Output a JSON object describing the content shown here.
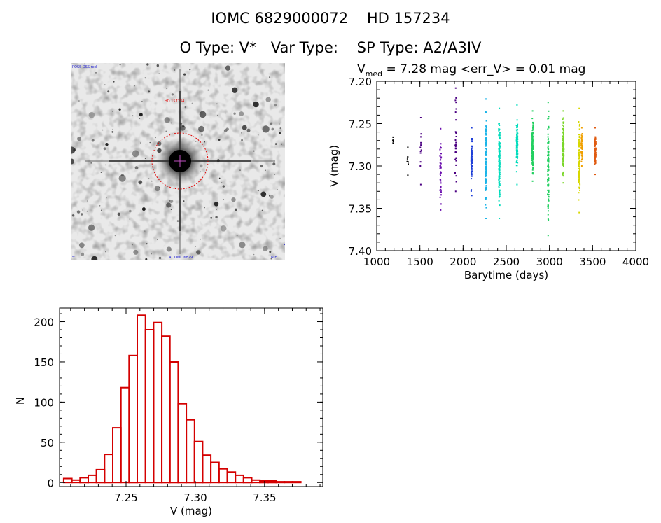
{
  "header": {
    "title_line1": "IOMC 6829000072    HD 157234",
    "object_type_label": "O Type: V*",
    "var_type_label": "Var Type:",
    "sp_type_label": "SP Type: A2/A3IV"
  },
  "finder_chart": {
    "labels": {
      "top_left": "POSS DSS red",
      "target": "HD 157234",
      "bottom_left": "5'",
      "bottom_center": "A: IOMC 6829",
      "bottom_right": "N E"
    }
  },
  "chart_data": [
    {
      "type": "scatter",
      "name": "light-curve",
      "title_prefix": "V",
      "title_subscript": "med",
      "title_suffix": " = 7.28 mag <err_V> = 0.01 mag",
      "xlabel": "Barytime (days)",
      "ylabel": "V (mag)",
      "xlim": [
        1000,
        4000
      ],
      "ylim": [
        7.4,
        7.2
      ],
      "y_inverted": true,
      "xticks": [
        1000,
        1500,
        2000,
        2500,
        3000,
        3500,
        4000
      ],
      "yticks": [
        7.2,
        7.25,
        7.3,
        7.35,
        7.4
      ],
      "colors": [
        "#000000",
        "#4b0082",
        "#6a0dad",
        "#1e3fd8",
        "#1ab4e8",
        "#00dcbc",
        "#22d060",
        "#7ad628",
        "#d8d800",
        "#f0a000",
        "#e05a10"
      ],
      "groups": [
        {
          "x": 1190,
          "ymin": 7.266,
          "ymax": 7.273,
          "n": 3,
          "color": 0
        },
        {
          "x": 1360,
          "ymin": 7.278,
          "ymax": 7.311,
          "n": 6,
          "color": 0
        },
        {
          "x": 1510,
          "ymin": 7.243,
          "ymax": 7.322,
          "n": 10,
          "color": 1
        },
        {
          "x": 1740,
          "ymin": 7.256,
          "ymax": 7.352,
          "n": 40,
          "color": 2
        },
        {
          "x": 1915,
          "ymin": 7.208,
          "ymax": 7.33,
          "n": 30,
          "color": 1
        },
        {
          "x": 2100,
          "ymin": 7.255,
          "ymax": 7.335,
          "n": 60,
          "color": 3
        },
        {
          "x": 2265,
          "ymin": 7.221,
          "ymax": 7.362,
          "n": 120,
          "color": 4
        },
        {
          "x": 2420,
          "ymin": 7.232,
          "ymax": 7.362,
          "n": 130,
          "color": 5
        },
        {
          "x": 2625,
          "ymin": 7.228,
          "ymax": 7.322,
          "n": 90,
          "color": 5
        },
        {
          "x": 2805,
          "ymin": 7.235,
          "ymax": 7.318,
          "n": 110,
          "color": 6
        },
        {
          "x": 2985,
          "ymin": 7.225,
          "ymax": 7.382,
          "n": 100,
          "color": 6
        },
        {
          "x": 3160,
          "ymin": 7.235,
          "ymax": 7.32,
          "n": 100,
          "color": 7
        },
        {
          "x": 3345,
          "ymin": 7.232,
          "ymax": 7.355,
          "n": 110,
          "color": 8
        },
        {
          "x": 3375,
          "ymin": 7.255,
          "ymax": 7.3,
          "n": 50,
          "color": 9
        },
        {
          "x": 3530,
          "ymin": 7.255,
          "ymax": 7.31,
          "n": 80,
          "color": 10
        }
      ]
    },
    {
      "type": "bar",
      "name": "histogram",
      "xlabel": "V (mag)",
      "ylabel": "N",
      "xlim": [
        7.202,
        7.392
      ],
      "ylim": [
        -5,
        217
      ],
      "xticks": [
        7.25,
        7.3,
        7.35
      ],
      "yticks": [
        0,
        50,
        100,
        150,
        200
      ],
      "bin_start": 7.205,
      "bin_width": 0.0059,
      "values": [
        5,
        3,
        6,
        9,
        16,
        35,
        68,
        118,
        158,
        208,
        190,
        199,
        182,
        150,
        98,
        78,
        51,
        34,
        25,
        17,
        13,
        9,
        6,
        3,
        2,
        2,
        1,
        1,
        1
      ],
      "color": "#d40000"
    }
  ]
}
